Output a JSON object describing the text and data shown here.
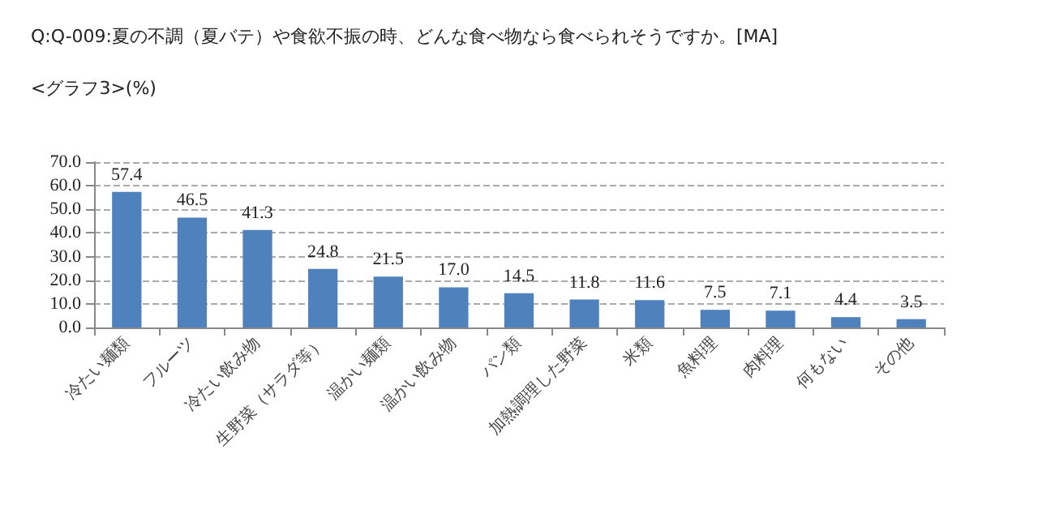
{
  "chart_data": {
    "type": "bar",
    "title": "Q:Q-009:夏の不調（夏バテ）や食欲不振の時、どんな食べ物なら食べられそうですか。[MA]",
    "subtitle": "<グラフ3>(%)",
    "categories": [
      "冷たい麺類",
      "フルーツ",
      "冷たい飲み物",
      "生野菜（サラダ等）",
      "温かい麺類",
      "温かい飲み物",
      "パン類",
      "加熱調理した野菜",
      "米類",
      "魚料理",
      "肉料理",
      "何もない",
      "その他"
    ],
    "values": [
      57.4,
      46.5,
      41.3,
      24.8,
      21.5,
      17.0,
      14.5,
      11.8,
      11.6,
      7.5,
      7.1,
      4.4,
      3.5
    ],
    "value_labels": [
      "57.4",
      "46.5",
      "41.3",
      "24.8",
      "21.5",
      "17.0",
      "14.5",
      "11.8",
      "11.6",
      "7.5",
      "7.1",
      "4.4",
      "3.5"
    ],
    "color": "#4f81bd",
    "ylim": [
      0,
      70
    ],
    "yticks": [
      {
        "value": 0,
        "label": "0.0"
      },
      {
        "value": 10,
        "label": "10.0"
      },
      {
        "value": 20,
        "label": "20.0"
      },
      {
        "value": 30,
        "label": "30.0"
      },
      {
        "value": 40,
        "label": "40.0"
      },
      {
        "value": 50,
        "label": "50.0"
      },
      {
        "value": 60,
        "label": "60.0"
      },
      {
        "value": 70,
        "label": "70.0"
      }
    ],
    "grid": "y"
  }
}
